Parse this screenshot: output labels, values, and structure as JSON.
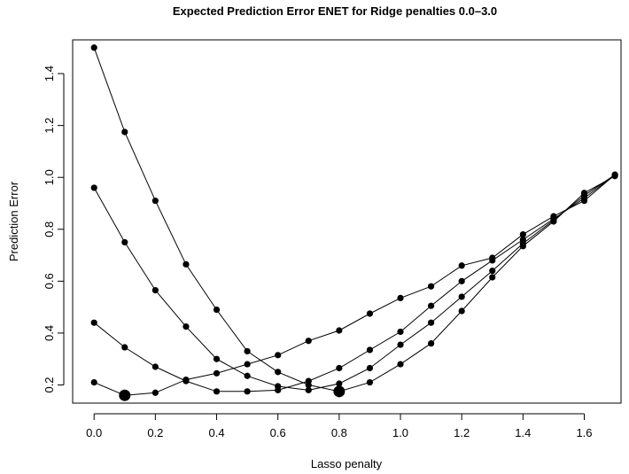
{
  "chart_data": {
    "type": "line",
    "title": "Expected Prediction Error ENET for Ridge penalties 0.0–3.0",
    "xlabel": "Lasso penalty",
    "ylabel": "Prediction Error",
    "xlim": [
      -0.07,
      1.72
    ],
    "ylim": [
      0.13,
      1.53
    ],
    "xticks": [
      "0.0",
      "0.2",
      "0.4",
      "0.6",
      "0.8",
      "1.0",
      "1.2",
      "1.4",
      "1.6"
    ],
    "yticks": [
      "0.2",
      "0.4",
      "0.6",
      "0.8",
      "1.0",
      "1.2",
      "1.4"
    ],
    "grid": false,
    "legend": "none",
    "x": [
      0.0,
      0.1,
      0.2,
      0.3,
      0.4,
      0.5,
      0.6,
      0.7,
      0.8,
      0.9,
      1.0,
      1.1,
      1.2,
      1.3,
      1.4,
      1.5,
      1.6,
      1.7
    ],
    "series": [
      {
        "values": [
          0.21,
          0.16,
          0.17,
          0.22,
          0.245,
          0.28,
          0.315,
          0.37,
          0.41,
          0.475,
          0.535,
          0.58,
          0.66,
          0.69,
          0.78,
          0.85,
          0.91,
          1.01
        ]
      },
      {
        "values": [
          0.44,
          0.345,
          0.27,
          0.215,
          0.175,
          0.175,
          0.18,
          0.215,
          0.265,
          0.335,
          0.405,
          0.505,
          0.6,
          0.68,
          0.76,
          0.84,
          0.92,
          1.01
        ]
      },
      {
        "values": [
          0.96,
          0.75,
          0.565,
          0.425,
          0.3,
          0.235,
          0.195,
          0.18,
          0.205,
          0.265,
          0.355,
          0.44,
          0.54,
          0.64,
          0.745,
          0.835,
          0.93,
          1.01
        ]
      },
      {
        "values": [
          1.5,
          1.175,
          0.91,
          0.665,
          0.49,
          0.33,
          0.25,
          0.2,
          0.175,
          0.21,
          0.28,
          0.36,
          0.485,
          0.615,
          0.735,
          0.83,
          0.94,
          1.005
        ]
      }
    ],
    "highlights": [
      {
        "x": 0.1,
        "y": 0.16
      },
      {
        "x": 0.8,
        "y": 0.175
      }
    ],
    "colors": {
      "line": "#000000",
      "point": "#000000",
      "axis": "#000000"
    }
  }
}
